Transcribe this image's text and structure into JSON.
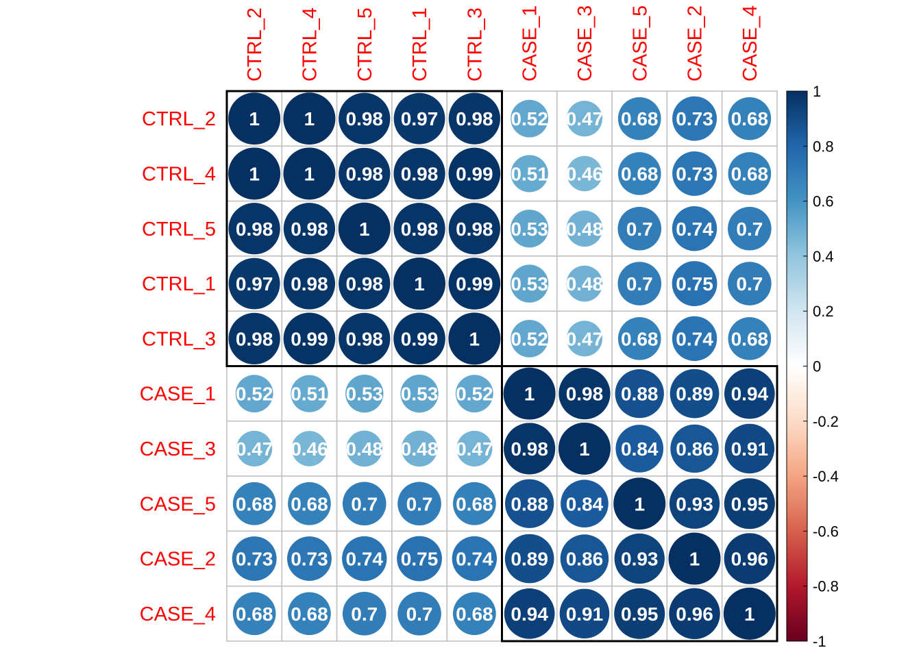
{
  "chart_data": {
    "type": "heatmap",
    "subtype": "correlation-circle",
    "labels": [
      "CTRL_2",
      "CTRL_4",
      "CTRL_5",
      "CTRL_1",
      "CTRL_3",
      "CASE_1",
      "CASE_3",
      "CASE_5",
      "CASE_2",
      "CASE_4"
    ],
    "matrix": [
      [
        1,
        1,
        0.98,
        0.97,
        0.98,
        0.52,
        0.47,
        0.68,
        0.73,
        0.68
      ],
      [
        1,
        1,
        0.98,
        0.98,
        0.99,
        0.51,
        0.46,
        0.68,
        0.73,
        0.68
      ],
      [
        0.98,
        0.98,
        1,
        0.98,
        0.98,
        0.53,
        0.48,
        0.7,
        0.74,
        0.7
      ],
      [
        0.97,
        0.98,
        0.98,
        1,
        0.99,
        0.53,
        0.48,
        0.7,
        0.75,
        0.7
      ],
      [
        0.98,
        0.99,
        0.98,
        0.99,
        1,
        0.52,
        0.47,
        0.68,
        0.74,
        0.68
      ],
      [
        0.52,
        0.51,
        0.53,
        0.53,
        0.52,
        1,
        0.98,
        0.88,
        0.89,
        0.94
      ],
      [
        0.47,
        0.46,
        0.48,
        0.48,
        0.47,
        0.98,
        1,
        0.84,
        0.86,
        0.91
      ],
      [
        0.68,
        0.68,
        0.7,
        0.7,
        0.68,
        0.88,
        0.84,
        1,
        0.93,
        0.95
      ],
      [
        0.73,
        0.73,
        0.74,
        0.75,
        0.74,
        0.89,
        0.86,
        0.93,
        1,
        0.96
      ],
      [
        0.68,
        0.68,
        0.7,
        0.7,
        0.68,
        0.94,
        0.91,
        0.95,
        0.96,
        1
      ]
    ],
    "clusters": [
      [
        0,
        4
      ],
      [
        5,
        9
      ]
    ],
    "colorbar": {
      "range": [
        -1,
        1
      ],
      "ticks": [
        "1",
        "0.8",
        "0.6",
        "0.4",
        "0.2",
        "0",
        "-0.2",
        "-0.4",
        "-0.6",
        "-0.8",
        "-1"
      ]
    },
    "colors": {
      "label": "#FF0000",
      "number": "#FFFFFF",
      "grid": "#BEBEBE",
      "box": "#000000",
      "palette": [
        "#67001F",
        "#B2182B",
        "#D6604D",
        "#F4A582",
        "#FDDBC7",
        "#FFFFFF",
        "#D1E5F0",
        "#92C5DE",
        "#4393C3",
        "#2166AC",
        "#053061"
      ]
    }
  }
}
